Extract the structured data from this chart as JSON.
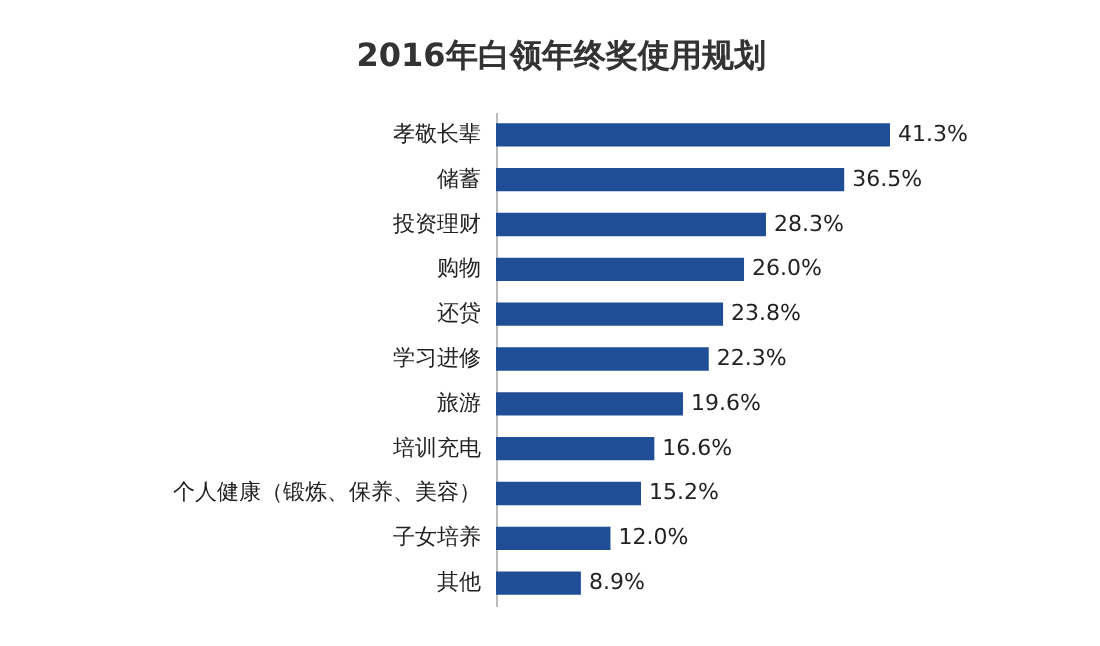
{
  "chart_data": {
    "type": "bar",
    "orientation": "horizontal",
    "title": "2016年白领年终奖使用规划",
    "categories": [
      "孝敬长辈",
      "储蓄",
      "投资理财",
      "购物",
      "还贷",
      "学习进修",
      "旅游",
      "培训充电",
      "个人健康（锻炼、保养、美容）",
      "子女培养",
      "其他"
    ],
    "values": [
      41.3,
      36.5,
      28.3,
      26.0,
      23.8,
      22.3,
      19.6,
      16.6,
      15.2,
      12.0,
      8.9
    ],
    "value_labels": [
      "41.3%",
      "36.5%",
      "28.3%",
      "26.0%",
      "23.8%",
      "22.3%",
      "19.6%",
      "16.6%",
      "15.2%",
      "12.0%",
      "8.9%"
    ],
    "color": "#1f4e96"
  }
}
